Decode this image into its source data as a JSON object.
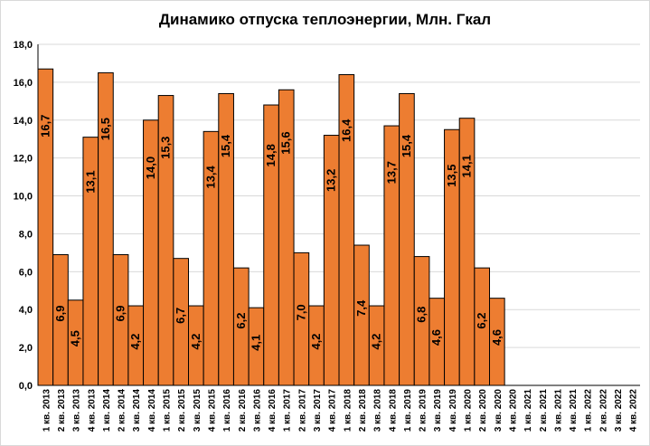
{
  "chart_data": {
    "type": "bar",
    "title": "Динамико отпуска теплоэнергии, Млн. Гкал",
    "xlabel": "",
    "ylabel": "",
    "ylim": [
      0,
      18
    ],
    "yticks": [
      "0,0",
      "2,0",
      "4,0",
      "6,0",
      "8,0",
      "10,0",
      "12,0",
      "14,0",
      "16,0",
      "18,0"
    ],
    "grid": true,
    "legend": "none",
    "colors": {
      "bar": "#ED7D31",
      "bar_edge": "#000000",
      "grid": "#d9d9d9",
      "axis": "#000000"
    },
    "categories": [
      "1 кв. 2013",
      "2 кв. 2013",
      "3 кв. 2013",
      "4 кв. 2013",
      "1 кв. 2014",
      "2 кв. 2014",
      "3 кв. 2014",
      "4 кв. 2014",
      "1 кв. 2015",
      "2 кв. 2015",
      "3 кв. 2015",
      "4 кв. 2015",
      "1 кв. 2016",
      "2 кв. 2016",
      "3 кв. 2016",
      "4 кв. 2016",
      "1 кв. 2017",
      "2 кв. 2017",
      "3 кв. 2017",
      "4 кв. 2017",
      "1 кв. 2018",
      "2 кв. 2018",
      "3 кв. 2018",
      "4 кв. 2018",
      "1 кв. 2019",
      "2 кв. 2019",
      "3 кв. 2019",
      "4 кв. 2019",
      "1 кв. 2020",
      "2 кв. 2020",
      "3 кв. 2020",
      "4 кв. 2020",
      "1 кв. 2021",
      "2 кв. 2021",
      "3 кв. 2021",
      "4 кв. 2021",
      "1 кв. 2022",
      "2 кв. 2022",
      "3 кв. 2022",
      "4 кв. 2022"
    ],
    "values": [
      16.7,
      6.9,
      4.5,
      13.1,
      16.5,
      6.9,
      4.2,
      14.0,
      15.3,
      6.7,
      4.2,
      13.4,
      15.4,
      6.2,
      4.1,
      14.8,
      15.6,
      7.0,
      4.2,
      13.2,
      16.4,
      7.4,
      4.2,
      13.7,
      15.4,
      6.8,
      4.6,
      13.5,
      14.1,
      6.2,
      4.6,
      null,
      null,
      null,
      null,
      null,
      null,
      null,
      null,
      null
    ],
    "data_labels": [
      "16,7",
      "6,9",
      "4,5",
      "13,1",
      "16,5",
      "6,9",
      "4,2",
      "14,0",
      "15,3",
      "6,7",
      "4,2",
      "13,4",
      "15,4",
      "6,2",
      "4,1",
      "14,8",
      "15,6",
      "7,0",
      "4,2",
      "13,2",
      "16,4",
      "7,4",
      "4,2",
      "13,7",
      "15,4",
      "6,8",
      "4,6",
      "13,5",
      "14,1",
      "6,2",
      "4,6",
      null,
      null,
      null,
      null,
      null,
      null,
      null,
      null,
      null
    ]
  }
}
